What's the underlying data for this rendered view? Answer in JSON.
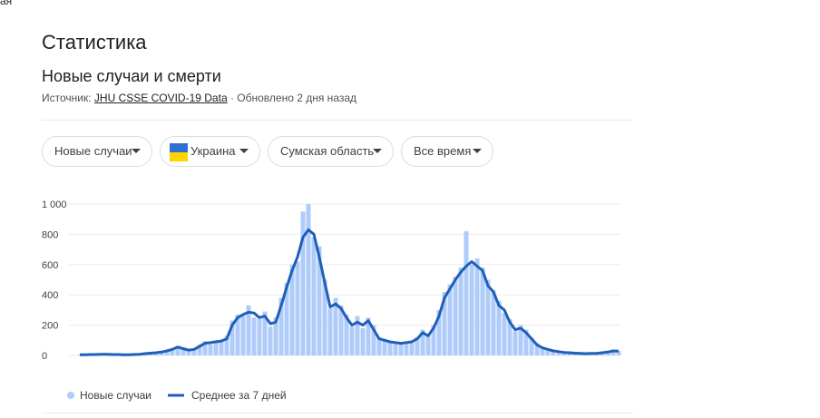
{
  "top_fragment": "ая",
  "header": {
    "title": "Статистика",
    "subtitle": "Новые случаи и смерти",
    "source_label": "Источник:",
    "source_link": "JHU CSSE COVID-19 Data",
    "updated": "· Обновлено 2 дня назад"
  },
  "filters": [
    "Новые случаи",
    "Украина",
    "Сумская область",
    "Все время"
  ],
  "chart_data": {
    "type": "combo",
    "ylim": [
      0,
      1000
    ],
    "yticks": [
      0,
      200,
      400,
      600,
      800,
      {
        "value": 1000,
        "label": "1 000"
      }
    ],
    "grid": true,
    "series": [
      {
        "name": "Новые случаи",
        "type": "bar",
        "color": "#aecbfa",
        "values": [
          4,
          6,
          5,
          8,
          7,
          9,
          5,
          7,
          4,
          6,
          8,
          10,
          14,
          16,
          20,
          25,
          34,
          45,
          62,
          40,
          30,
          45,
          70,
          95,
          75,
          100,
          90,
          130,
          230,
          270,
          260,
          330,
          250,
          240,
          290,
          190,
          250,
          380,
          480,
          600,
          620,
          950,
          1000,
          780,
          720,
          500,
          310,
          380,
          330,
          270,
          190,
          260,
          180,
          250,
          200,
          120,
          110,
          95,
          80,
          85,
          90,
          85,
          120,
          170,
          140,
          200,
          300,
          420,
          470,
          520,
          580,
          820,
          600,
          640,
          580,
          500,
          430,
          360,
          280,
          240,
          160,
          200,
          170,
          120,
          80,
          55,
          45,
          35,
          28,
          22,
          20,
          16,
          15,
          13,
          14,
          15,
          20,
          24,
          35,
          30
        ]
      },
      {
        "name": "Среднее за 7 дней",
        "type": "line",
        "color": "#1f5fb8",
        "values": [
          5,
          5,
          6,
          6,
          7,
          7,
          6,
          6,
          5,
          5,
          6,
          8,
          12,
          15,
          18,
          22,
          30,
          40,
          55,
          45,
          35,
          40,
          60,
          80,
          85,
          90,
          95,
          110,
          200,
          250,
          270,
          285,
          280,
          250,
          260,
          210,
          220,
          330,
          450,
          560,
          650,
          780,
          830,
          800,
          650,
          480,
          320,
          340,
          310,
          250,
          200,
          220,
          200,
          230,
          170,
          110,
          100,
          90,
          85,
          80,
          85,
          90,
          110,
          150,
          130,
          180,
          260,
          380,
          440,
          500,
          550,
          590,
          620,
          590,
          560,
          460,
          420,
          330,
          300,
          220,
          170,
          180,
          150,
          110,
          70,
          50,
          40,
          30,
          25,
          20,
          18,
          15,
          14,
          12,
          13,
          14,
          18,
          22,
          30,
          28
        ]
      }
    ]
  }
}
